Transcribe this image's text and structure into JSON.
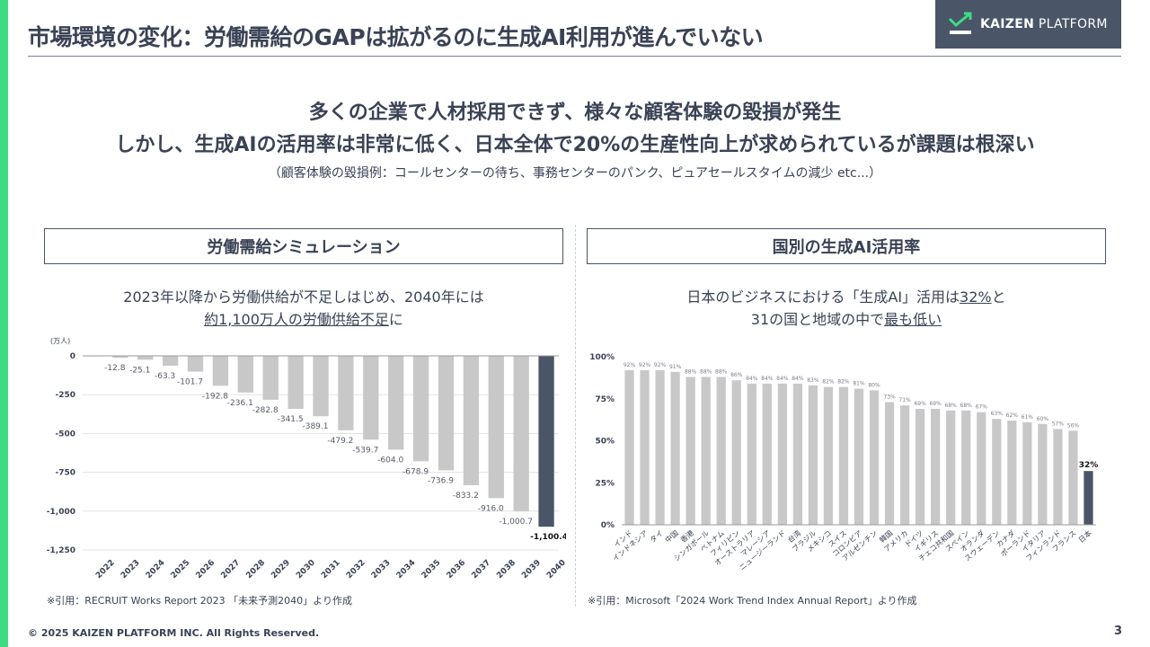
{
  "title": "市場環境の変化：労働需給のGAPは拡がるのに生成AI利用が進んでいない",
  "logo": {
    "brand_bold": "KAIZEN",
    "brand_light": " PLATFORM",
    "icon": "check-trend-icon"
  },
  "headline": {
    "line1": "多くの企業で人材採用できず、様々な顧客体験の毀損が発生",
    "line2": "しかし、生成AIの活用率は非常に低く、日本全体で20%の生産性向上が求められているが課題は根深い",
    "note": "（顧客体験の毀損例：コールセンターの待ち、事務センターのパンク、ピュアセールスタイムの減少 etc...）"
  },
  "left_panel": {
    "title": "労働需給シミュレーション",
    "subhead_line1": "2023年以降から労働供給が不足しはじめ、2040年には",
    "subhead_line2": "約1,100万人の労働供給不足",
    "subhead_line2_suffix": "に",
    "source": "※引用：RECRUIT Works Report 2023 「未来予測2040」より作成"
  },
  "right_panel": {
    "title": "国別の生成AI活用率",
    "subhead_line1_prefix": "日本のビジネスにおける「生成AI」活用は",
    "subhead_line1_highlight": "32%",
    "subhead_line1_suffix": "と",
    "subhead_line2_prefix": "31の国と地域の中で",
    "subhead_line2_highlight": "最も低い",
    "source": "※引用：Microsoft「2024 Work Trend Index Annual Report」より作成"
  },
  "footer": {
    "copyright": "© 2025 KAIZEN PLATFORM INC. All Rights Reserved.",
    "page": "3"
  },
  "colors": {
    "accent": "#3ddc84",
    "dark": "#4a5568",
    "bar": "#c8c8c8",
    "text": "#3a4255"
  },
  "chart_data": [
    {
      "type": "bar",
      "unit_label": "(万人)",
      "categories": [
        "2022",
        "2023",
        "2024",
        "2025",
        "2026",
        "2027",
        "2028",
        "2029",
        "2030",
        "2031",
        "2032",
        "2033",
        "2034",
        "2035",
        "2036",
        "2037",
        "2038",
        "2039",
        "2040"
      ],
      "values": [
        0,
        -12.8,
        -25.1,
        -63.3,
        -101.7,
        -192.8,
        -236.1,
        -282.8,
        -341.5,
        -389.1,
        -479.2,
        -539.7,
        -604.0,
        -678.9,
        -736.9,
        -833.2,
        -916.0,
        -1000.7,
        -1100.4
      ],
      "value_labels": [
        "",
        "-12.8",
        "-25.1",
        "-63.3",
        "-101.7",
        "-192.8",
        "-236.1",
        "-282.8",
        "-341.5",
        "-389.1",
        "-479.2",
        "-539.7",
        "-604.0",
        "-678.9",
        "-736.9",
        "-833.2",
        "-916.0",
        "-1,000.7",
        "-1,100.4"
      ],
      "ylim": [
        -1250,
        0
      ],
      "yticks": [
        0,
        -250,
        -500,
        -750,
        -1000,
        -1250
      ],
      "ytick_labels": [
        "0",
        "-250",
        "-500",
        "-750",
        "-1,000",
        "-1,250"
      ],
      "highlight_index": 18,
      "grid": true
    },
    {
      "type": "bar",
      "categories": [
        "インド",
        "インドネシア",
        "タイ",
        "中国",
        "香港",
        "シンガポール",
        "ベトナム",
        "フィリピン",
        "オーストラリア",
        "マレーシア",
        "ニュージーランド",
        "台湾",
        "ブラジル",
        "メキシコ",
        "スイス",
        "コロンビア",
        "アルゼンチン",
        "韓国",
        "アメリカ",
        "ドイツ",
        "イギリス",
        "チェコ共和国",
        "スペイン",
        "オランダ",
        "スウェーデン",
        "カナダ",
        "ポーランド",
        "イタリア",
        "フィンランド",
        "フランス",
        "日本"
      ],
      "values": [
        92,
        92,
        92,
        91,
        88,
        88,
        88,
        86,
        84,
        84,
        84,
        84,
        83,
        82,
        82,
        81,
        80,
        73,
        71,
        69,
        69,
        68,
        68,
        67,
        63,
        62,
        61,
        60,
        57,
        56,
        32
      ],
      "value_labels": [
        "92%",
        "92%",
        "92%",
        "91%",
        "88%",
        "88%",
        "88%",
        "86%",
        "84%",
        "84%",
        "84%",
        "84%",
        "83%",
        "82%",
        "82%",
        "81%",
        "80%",
        "73%",
        "71%",
        "69%",
        "69%",
        "68%",
        "68%",
        "67%",
        "63%",
        "62%",
        "61%",
        "60%",
        "57%",
        "56%",
        "32%"
      ],
      "ylim": [
        0,
        100
      ],
      "yticks": [
        0,
        25,
        50,
        75,
        100
      ],
      "ytick_labels": [
        "0%",
        "25%",
        "50%",
        "75%",
        "100%"
      ],
      "highlight_index": 30,
      "grid": false
    }
  ]
}
